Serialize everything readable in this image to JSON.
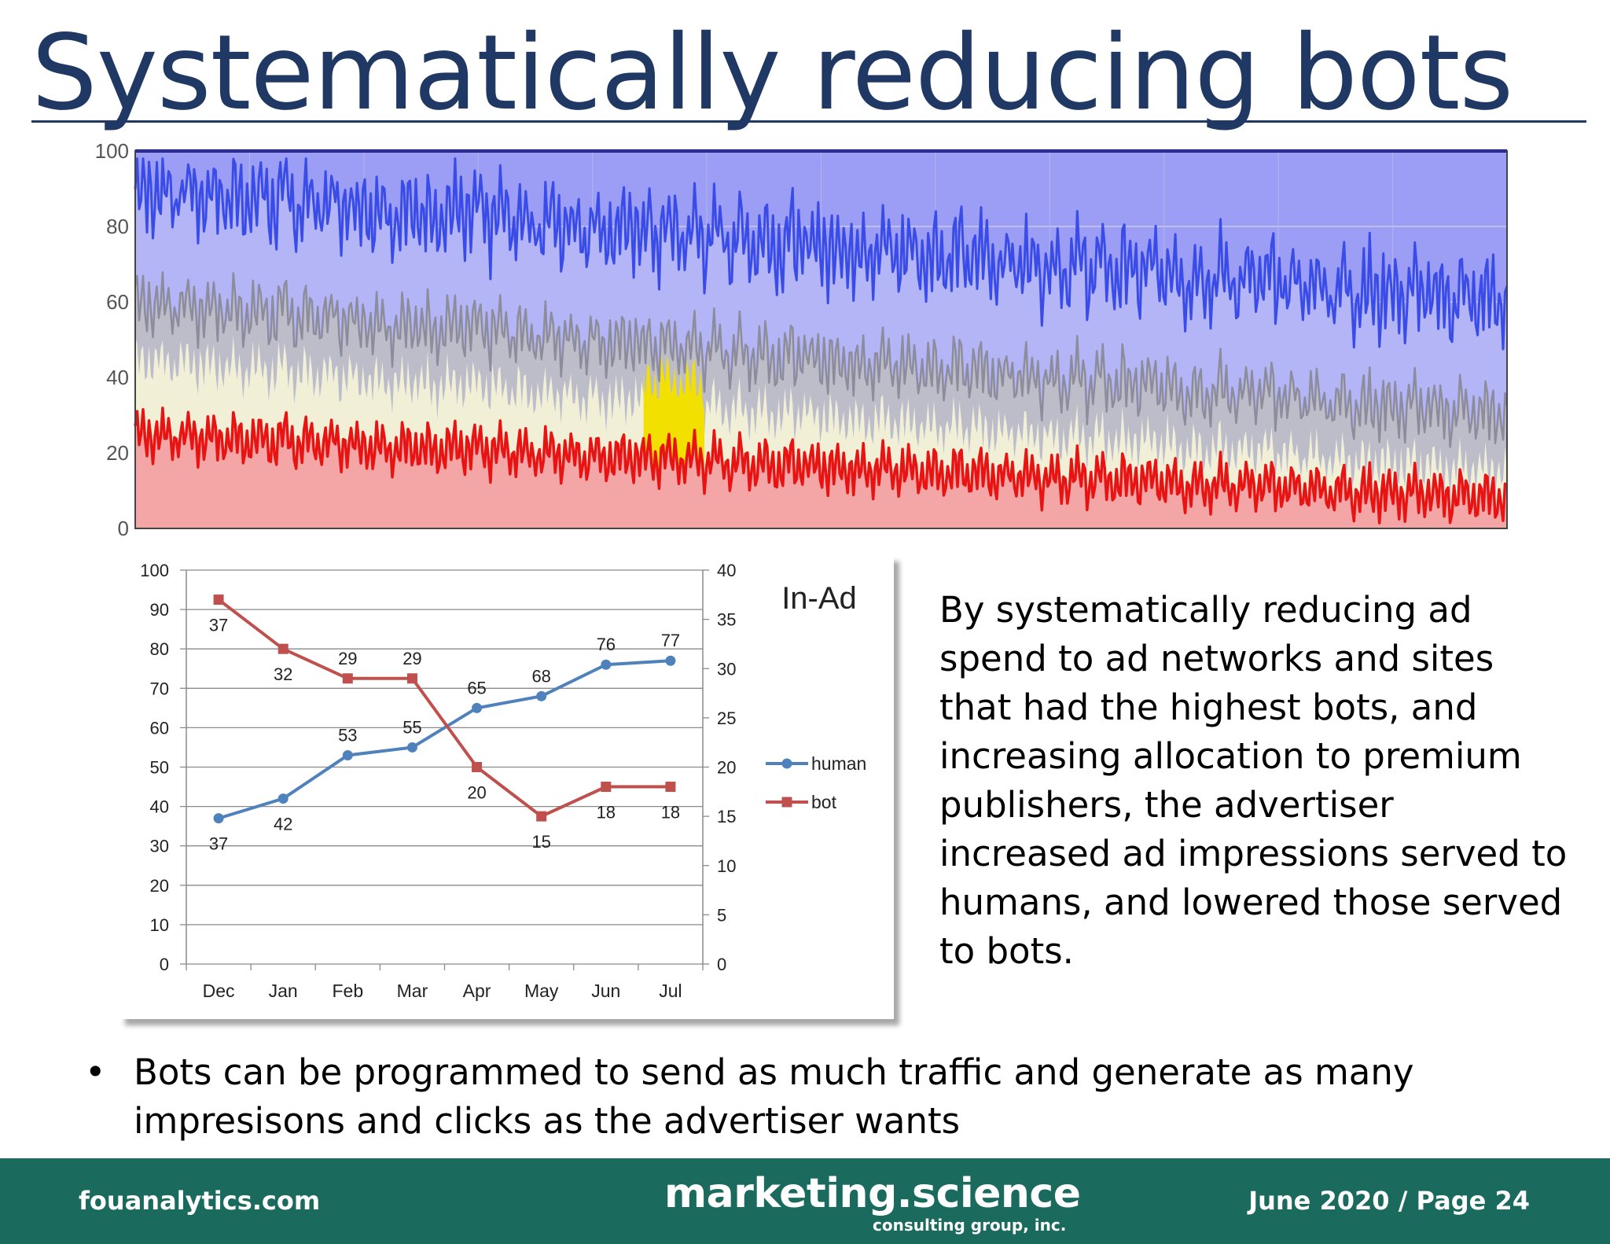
{
  "slide": {
    "title": "Systematically reducing bots",
    "paragraph": "By systematically reducing ad spend to ad networks and sites that had the highest bots, and increasing allocation to premium publishers, the advertiser increased ad impressions served to humans, and lowered those served to bots.",
    "bullet_symbol": "•",
    "bullet": "Bots can be programmed to send as much traffic and generate as many impresisons and clicks as the advertiser wants"
  },
  "footer": {
    "left": "fouanalytics.com",
    "logo_main": "marketing.science",
    "logo_sub": "consulting group, inc.",
    "right": "June 2020 / Page 24",
    "background": "#1b6a5e"
  },
  "chart_data": [
    {
      "type": "area",
      "ylim": [
        0,
        100
      ],
      "y_ticks": [
        "100",
        "80",
        "60",
        "40",
        "20",
        "0"
      ],
      "grid": true,
      "legend": "none",
      "colors": {
        "top": "#9c9ef5",
        "human_band": "#b3b5f6",
        "human_line": "#3a4ce8",
        "gray_band": "#bdbdca",
        "gray_line": "#8c8c9c",
        "cream_band": "#f1efd6",
        "bot_band": "#f4a6a6",
        "bot_line": "#e81414",
        "yellow": "#f2e100"
      },
      "series_levels_start": {
        "human_line": 90,
        "gray_line": 60,
        "cream_line": 45,
        "bot_line": 25
      },
      "series_levels_end": {
        "human_line": 60,
        "gray_line": 30,
        "cream_line": 15,
        "bot_line": 8
      }
    },
    {
      "type": "line",
      "title": "In-Ad",
      "categories": [
        "Dec",
        "Jan",
        "Feb",
        "Mar",
        "Apr",
        "May",
        "Jun",
        "Jul"
      ],
      "y_left_ticks": [
        "100",
        "90",
        "80",
        "70",
        "60",
        "50",
        "40",
        "30",
        "20",
        "10",
        "0"
      ],
      "y_right_ticks": [
        "40",
        "35",
        "30",
        "25",
        "20",
        "15",
        "10",
        "5",
        "0"
      ],
      "ylim_left": [
        0,
        100
      ],
      "ylim_right": [
        0,
        40
      ],
      "grid": true,
      "legend": "right",
      "series": [
        {
          "name": "human",
          "axis": "left",
          "color": "#4f81bd",
          "marker": "circle",
          "values": [
            37,
            42,
            53,
            55,
            65,
            68,
            76,
            77
          ]
        },
        {
          "name": "bot",
          "axis": "right",
          "color": "#c0504d",
          "marker": "square",
          "values": [
            37,
            32,
            29,
            29,
            20,
            15,
            18,
            18
          ]
        }
      ]
    }
  ]
}
